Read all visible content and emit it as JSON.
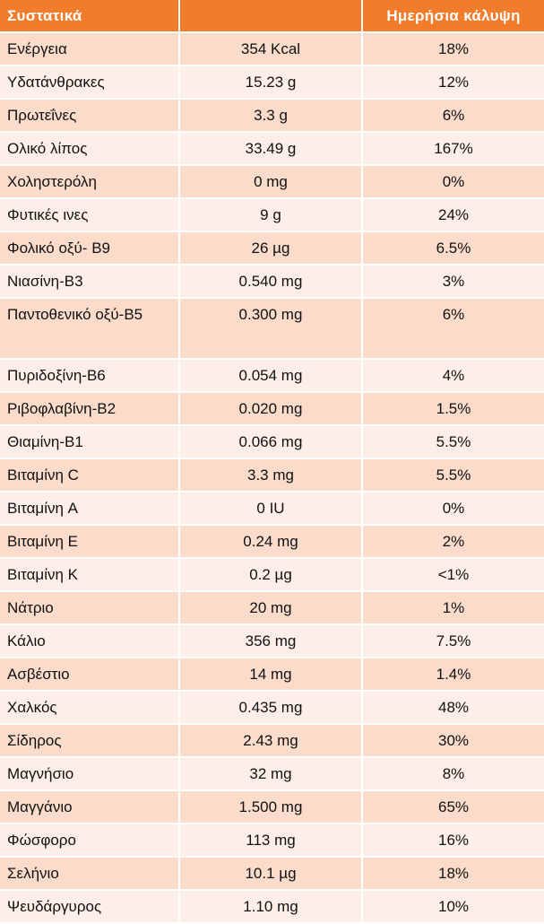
{
  "header": {
    "col1": "Συστατικά",
    "col2": "",
    "col3": "Ημερήσια κάλυψη"
  },
  "rows": [
    {
      "name": "Ενέργεια",
      "amount": "354 Kcal",
      "daily": "18%"
    },
    {
      "name": "Υδατάνθρακες",
      "amount": "15.23 g",
      "daily": "12%"
    },
    {
      "name": "Πρωτεΐνες",
      "amount": "3.3 g",
      "daily": "6%"
    },
    {
      "name": "Ολικό λίπος",
      "amount": "33.49 g",
      "daily": "167%"
    },
    {
      "name": "Χοληστερόλη",
      "amount": "0 mg",
      "daily": "0%"
    },
    {
      "name": "Φυτικές ινες",
      "amount": "9 g",
      "daily": "24%"
    },
    {
      "name": "Φολικό οξύ- Β9",
      "amount": "26 µg",
      "daily": "6.5%"
    },
    {
      "name": "Νιασίνη-Β3",
      "amount": "0.540 mg",
      "daily": "3%"
    },
    {
      "name": "Παντοθενικό οξύ-Β5",
      "amount": "0.300 mg",
      "daily": "6%"
    },
    {
      "name": "Πυριδοξίνη-Β6",
      "amount": "0.054 mg",
      "daily": "4%"
    },
    {
      "name": "Ριβοφλαβίνη-Β2",
      "amount": "0.020 mg",
      "daily": "1.5%"
    },
    {
      "name": "Θιαμίνη-Β1",
      "amount": "0.066 mg",
      "daily": "5.5%"
    },
    {
      "name": "Βιταμίνη C",
      "amount": "3.3 mg",
      "daily": "5.5%"
    },
    {
      "name": "Βιταμίνη  A",
      "amount": "0 IU",
      "daily": "0%"
    },
    {
      "name": "Βιταμίνη  E",
      "amount": "0.24 mg",
      "daily": "2%"
    },
    {
      "name": "Βιταμίνη K",
      "amount": "0.2 µg",
      "daily": "<1%"
    },
    {
      "name": "Νάτριο",
      "amount": "20 mg",
      "daily": "1%"
    },
    {
      "name": "Κάλιο",
      "amount": "356 mg",
      "daily": "7.5%"
    },
    {
      "name": "Ασβέστιο",
      "amount": "14 mg",
      "daily": "1.4%"
    },
    {
      "name": "Χαλκός",
      "amount": "0.435 mg",
      "daily": "48%"
    },
    {
      "name": "Σίδηρος",
      "amount": "2.43 mg",
      "daily": "30%"
    },
    {
      "name": "Μαγνήσιο",
      "amount": "32 mg",
      "daily": "8%"
    },
    {
      "name": "Μαγγάνιο",
      "amount": "1.500 mg",
      "daily": "65%"
    },
    {
      "name": "Φώσφορο",
      "amount": "113 mg",
      "daily": "16%"
    },
    {
      "name": "Σελήνιο",
      "amount": "10.1 µg",
      "daily": "18%"
    },
    {
      "name": "Ψευδάργυρος",
      "amount": "1.10 mg",
      "daily": "10%"
    }
  ]
}
